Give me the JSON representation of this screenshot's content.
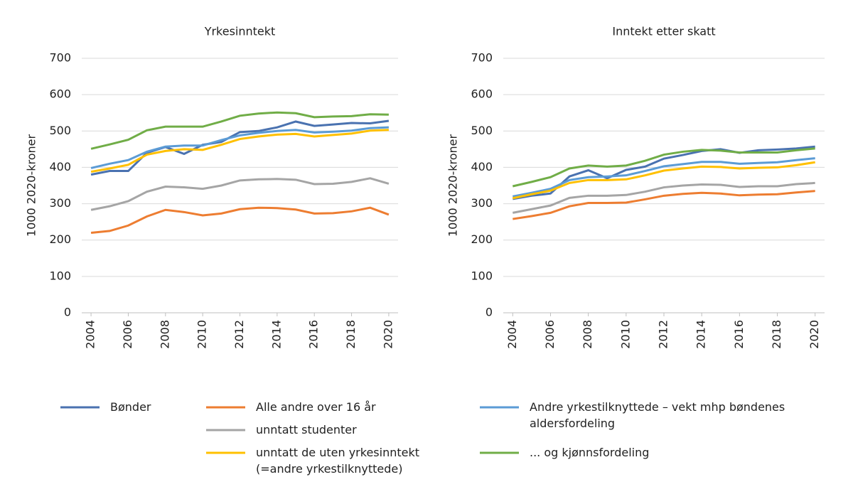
{
  "chart_data": [
    {
      "type": "line",
      "title": "Yrkesinntekt",
      "y_label": "1000 2020-kroner",
      "x": [
        2004,
        2005,
        2006,
        2007,
        2008,
        2009,
        2010,
        2011,
        2012,
        2013,
        2014,
        2015,
        2016,
        2017,
        2018,
        2019,
        2020
      ],
      "xlim": [
        2003.5,
        2020.5
      ],
      "xticks": [
        2004,
        2006,
        2008,
        2010,
        2012,
        2014,
        2016,
        2018,
        2020
      ],
      "ylim": [
        0,
        700
      ],
      "yticks": [
        0,
        100,
        200,
        300,
        400,
        500,
        600,
        700
      ],
      "grid": true,
      "series": [
        {
          "name": "Bønder",
          "color": "#4a72b0",
          "values": [
            380,
            390,
            390,
            440,
            456,
            437,
            462,
            470,
            497,
            500,
            510,
            526,
            514,
            518,
            522,
            521,
            528
          ]
        },
        {
          "name": "Alle andre over 16 år",
          "color": "#ed7d31",
          "values": [
            220,
            225,
            240,
            265,
            283,
            277,
            268,
            273,
            285,
            289,
            288,
            284,
            273,
            274,
            279,
            289,
            270
          ]
        },
        {
          "name": "Andre yrkestilknyttede – vekt mhp bøndenes aldersfordeling",
          "color": "#5b9bd5",
          "values": [
            398,
            410,
            420,
            443,
            457,
            460,
            460,
            475,
            488,
            495,
            500,
            503,
            496,
            498,
            501,
            508,
            510
          ]
        },
        {
          "name": "unntatt studenter",
          "color": "#a5a5a5",
          "values": [
            283,
            293,
            307,
            333,
            347,
            345,
            341,
            350,
            364,
            367,
            368,
            366,
            354,
            355,
            360,
            370,
            355
          ]
        },
        {
          "name": "unntatt de uten yrkesinntekt\n(=andre yrkestilknyttede)",
          "color": "#ffc000",
          "values": [
            388,
            397,
            407,
            435,
            445,
            450,
            448,
            462,
            478,
            485,
            490,
            492,
            485,
            489,
            493,
            501,
            503
          ]
        },
        {
          "name": "... og kjønnsfordeling",
          "color": "#70ad47",
          "values": [
            451,
            463,
            476,
            502,
            512,
            512,
            512,
            526,
            542,
            548,
            551,
            549,
            538,
            540,
            541,
            546,
            545
          ]
        }
      ]
    },
    {
      "type": "line",
      "title": "Inntekt etter skatt",
      "y_label": "1000 2020-kroner",
      "x": [
        2004,
        2005,
        2006,
        2007,
        2008,
        2009,
        2010,
        2011,
        2012,
        2013,
        2014,
        2015,
        2016,
        2017,
        2018,
        2019,
        2020
      ],
      "xlim": [
        2003.5,
        2020.5
      ],
      "xticks": [
        2004,
        2006,
        2008,
        2010,
        2012,
        2014,
        2016,
        2018,
        2020
      ],
      "ylim": [
        0,
        700
      ],
      "yticks": [
        0,
        100,
        200,
        300,
        400,
        500,
        600,
        700
      ],
      "grid": true,
      "series": [
        {
          "color": "#4a72b0",
          "values": [
            313,
            322,
            328,
            375,
            392,
            370,
            393,
            402,
            424,
            434,
            445,
            450,
            440,
            447,
            449,
            452,
            457
          ]
        },
        {
          "color": "#ed7d31",
          "values": [
            258,
            266,
            275,
            293,
            302,
            302,
            303,
            312,
            322,
            327,
            330,
            328,
            323,
            325,
            326,
            331,
            335
          ]
        },
        {
          "color": "#5b9bd5",
          "values": [
            320,
            330,
            341,
            365,
            373,
            375,
            378,
            390,
            403,
            409,
            415,
            415,
            410,
            412,
            414,
            420,
            425
          ]
        },
        {
          "color": "#a5a5a5",
          "values": [
            275,
            285,
            295,
            316,
            322,
            322,
            324,
            333,
            345,
            350,
            353,
            352,
            346,
            348,
            348,
            354,
            357
          ]
        },
        {
          "color": "#ffc000",
          "values": [
            315,
            326,
            336,
            357,
            365,
            365,
            367,
            378,
            391,
            397,
            402,
            401,
            397,
            399,
            400,
            406,
            414
          ]
        },
        {
          "color": "#70ad47",
          "values": [
            348,
            360,
            373,
            397,
            405,
            402,
            405,
            418,
            435,
            443,
            448,
            446,
            441,
            441,
            441,
            447,
            452
          ]
        }
      ]
    }
  ]
}
